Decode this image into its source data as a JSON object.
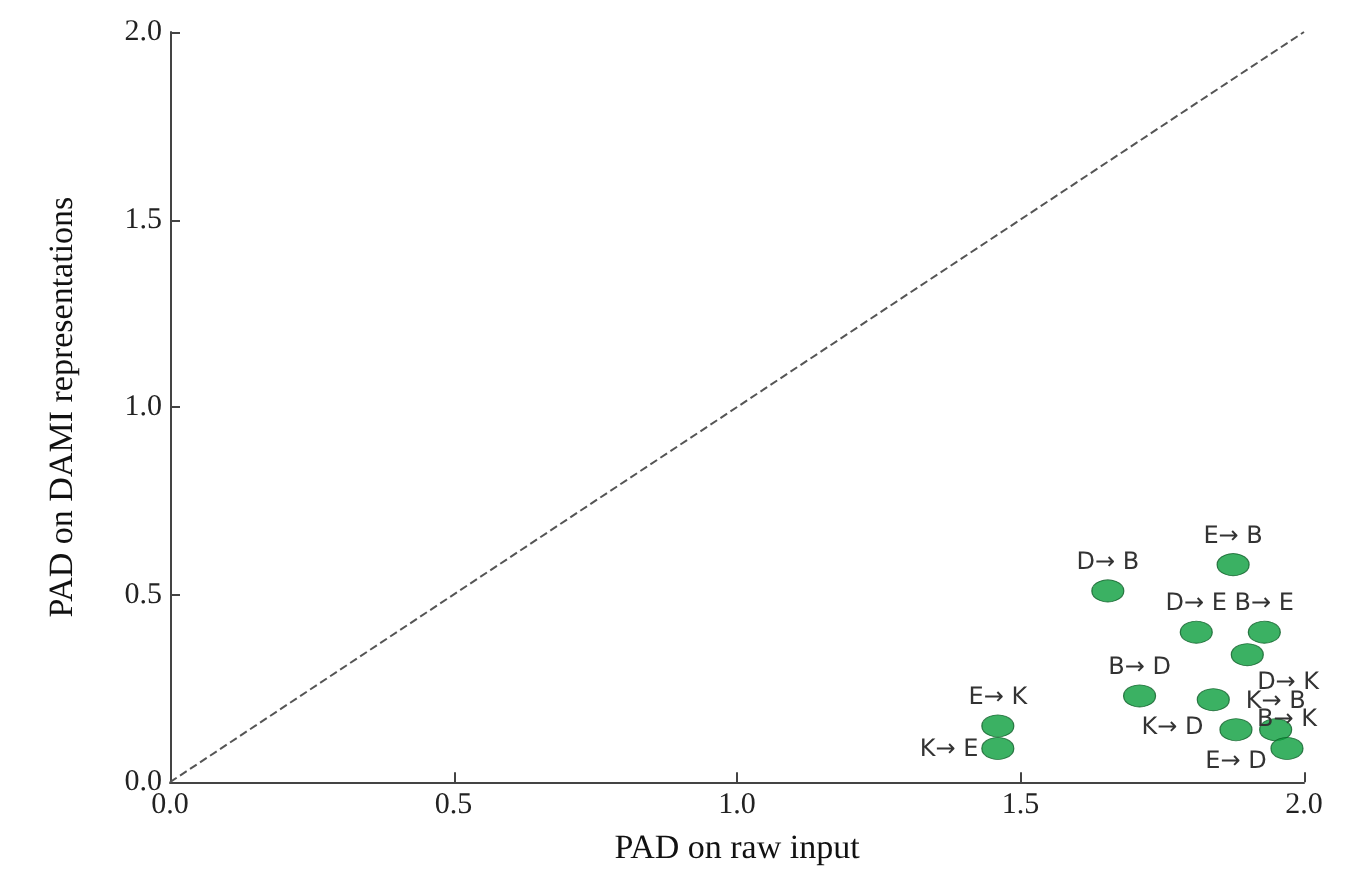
{
  "chart_data": {
    "type": "scatter",
    "xlabel": "PAD on raw input",
    "ylabel": "PAD on DAMI representations",
    "xlim": [
      0,
      2
    ],
    "ylim": [
      0,
      2
    ],
    "xticks": [
      {
        "value": 0,
        "label": "0.0"
      },
      {
        "value": 0.5,
        "label": "0.5"
      },
      {
        "value": 1,
        "label": "1.0"
      },
      {
        "value": 1.5,
        "label": "1.5"
      },
      {
        "value": 2,
        "label": "2.0"
      }
    ],
    "yticks": [
      {
        "value": 0,
        "label": "0.0"
      },
      {
        "value": 0.5,
        "label": "0.5"
      },
      {
        "value": 1,
        "label": "1.0"
      },
      {
        "value": 1.5,
        "label": "1.5"
      },
      {
        "value": 2,
        "label": "2.0"
      }
    ],
    "grid": false,
    "marker": "circle",
    "series": [
      {
        "color": "#0a9e3c",
        "x": [
          1.875,
          1.654,
          1.81,
          1.93,
          1.9,
          1.71,
          1.84,
          1.88,
          1.95,
          1.97,
          1.46,
          1.46
        ],
        "values": [
          0.58,
          0.51,
          0.4,
          0.4,
          0.34,
          0.23,
          0.22,
          0.14,
          0.14,
          0.09,
          0.15,
          0.09
        ]
      },
      {
        "type": "line",
        "color": "#555555",
        "line_style": "dashed",
        "marker": "none",
        "x": [
          0,
          2
        ],
        "values": [
          0,
          2
        ]
      }
    ],
    "annotations": [
      {
        "text": "E→ B",
        "x": 1.875,
        "y": 0.58
      },
      {
        "text": "D→ B",
        "x": 1.654,
        "y": 0.51
      },
      {
        "text": "D→ E",
        "x": 1.81,
        "y": 0.4
      },
      {
        "text": "B→ E",
        "x": 1.93,
        "y": 0.4
      },
      {
        "text": "D→ K",
        "x": 1.9,
        "y": 0.34
      },
      {
        "text": "B→ D",
        "x": 1.71,
        "y": 0.23
      },
      {
        "text": "K→ D",
        "x": 1.84,
        "y": 0.22
      },
      {
        "text": "E→ D",
        "x": 1.88,
        "y": 0.14
      },
      {
        "text": "K→ B",
        "x": 1.95,
        "y": 0.14
      },
      {
        "text": "B→ K",
        "x": 1.97,
        "y": 0.09
      },
      {
        "text": "E→ K",
        "x": 1.46,
        "y": 0.15
      },
      {
        "text": "K→ E",
        "x": 1.46,
        "y": 0.09
      }
    ]
  }
}
